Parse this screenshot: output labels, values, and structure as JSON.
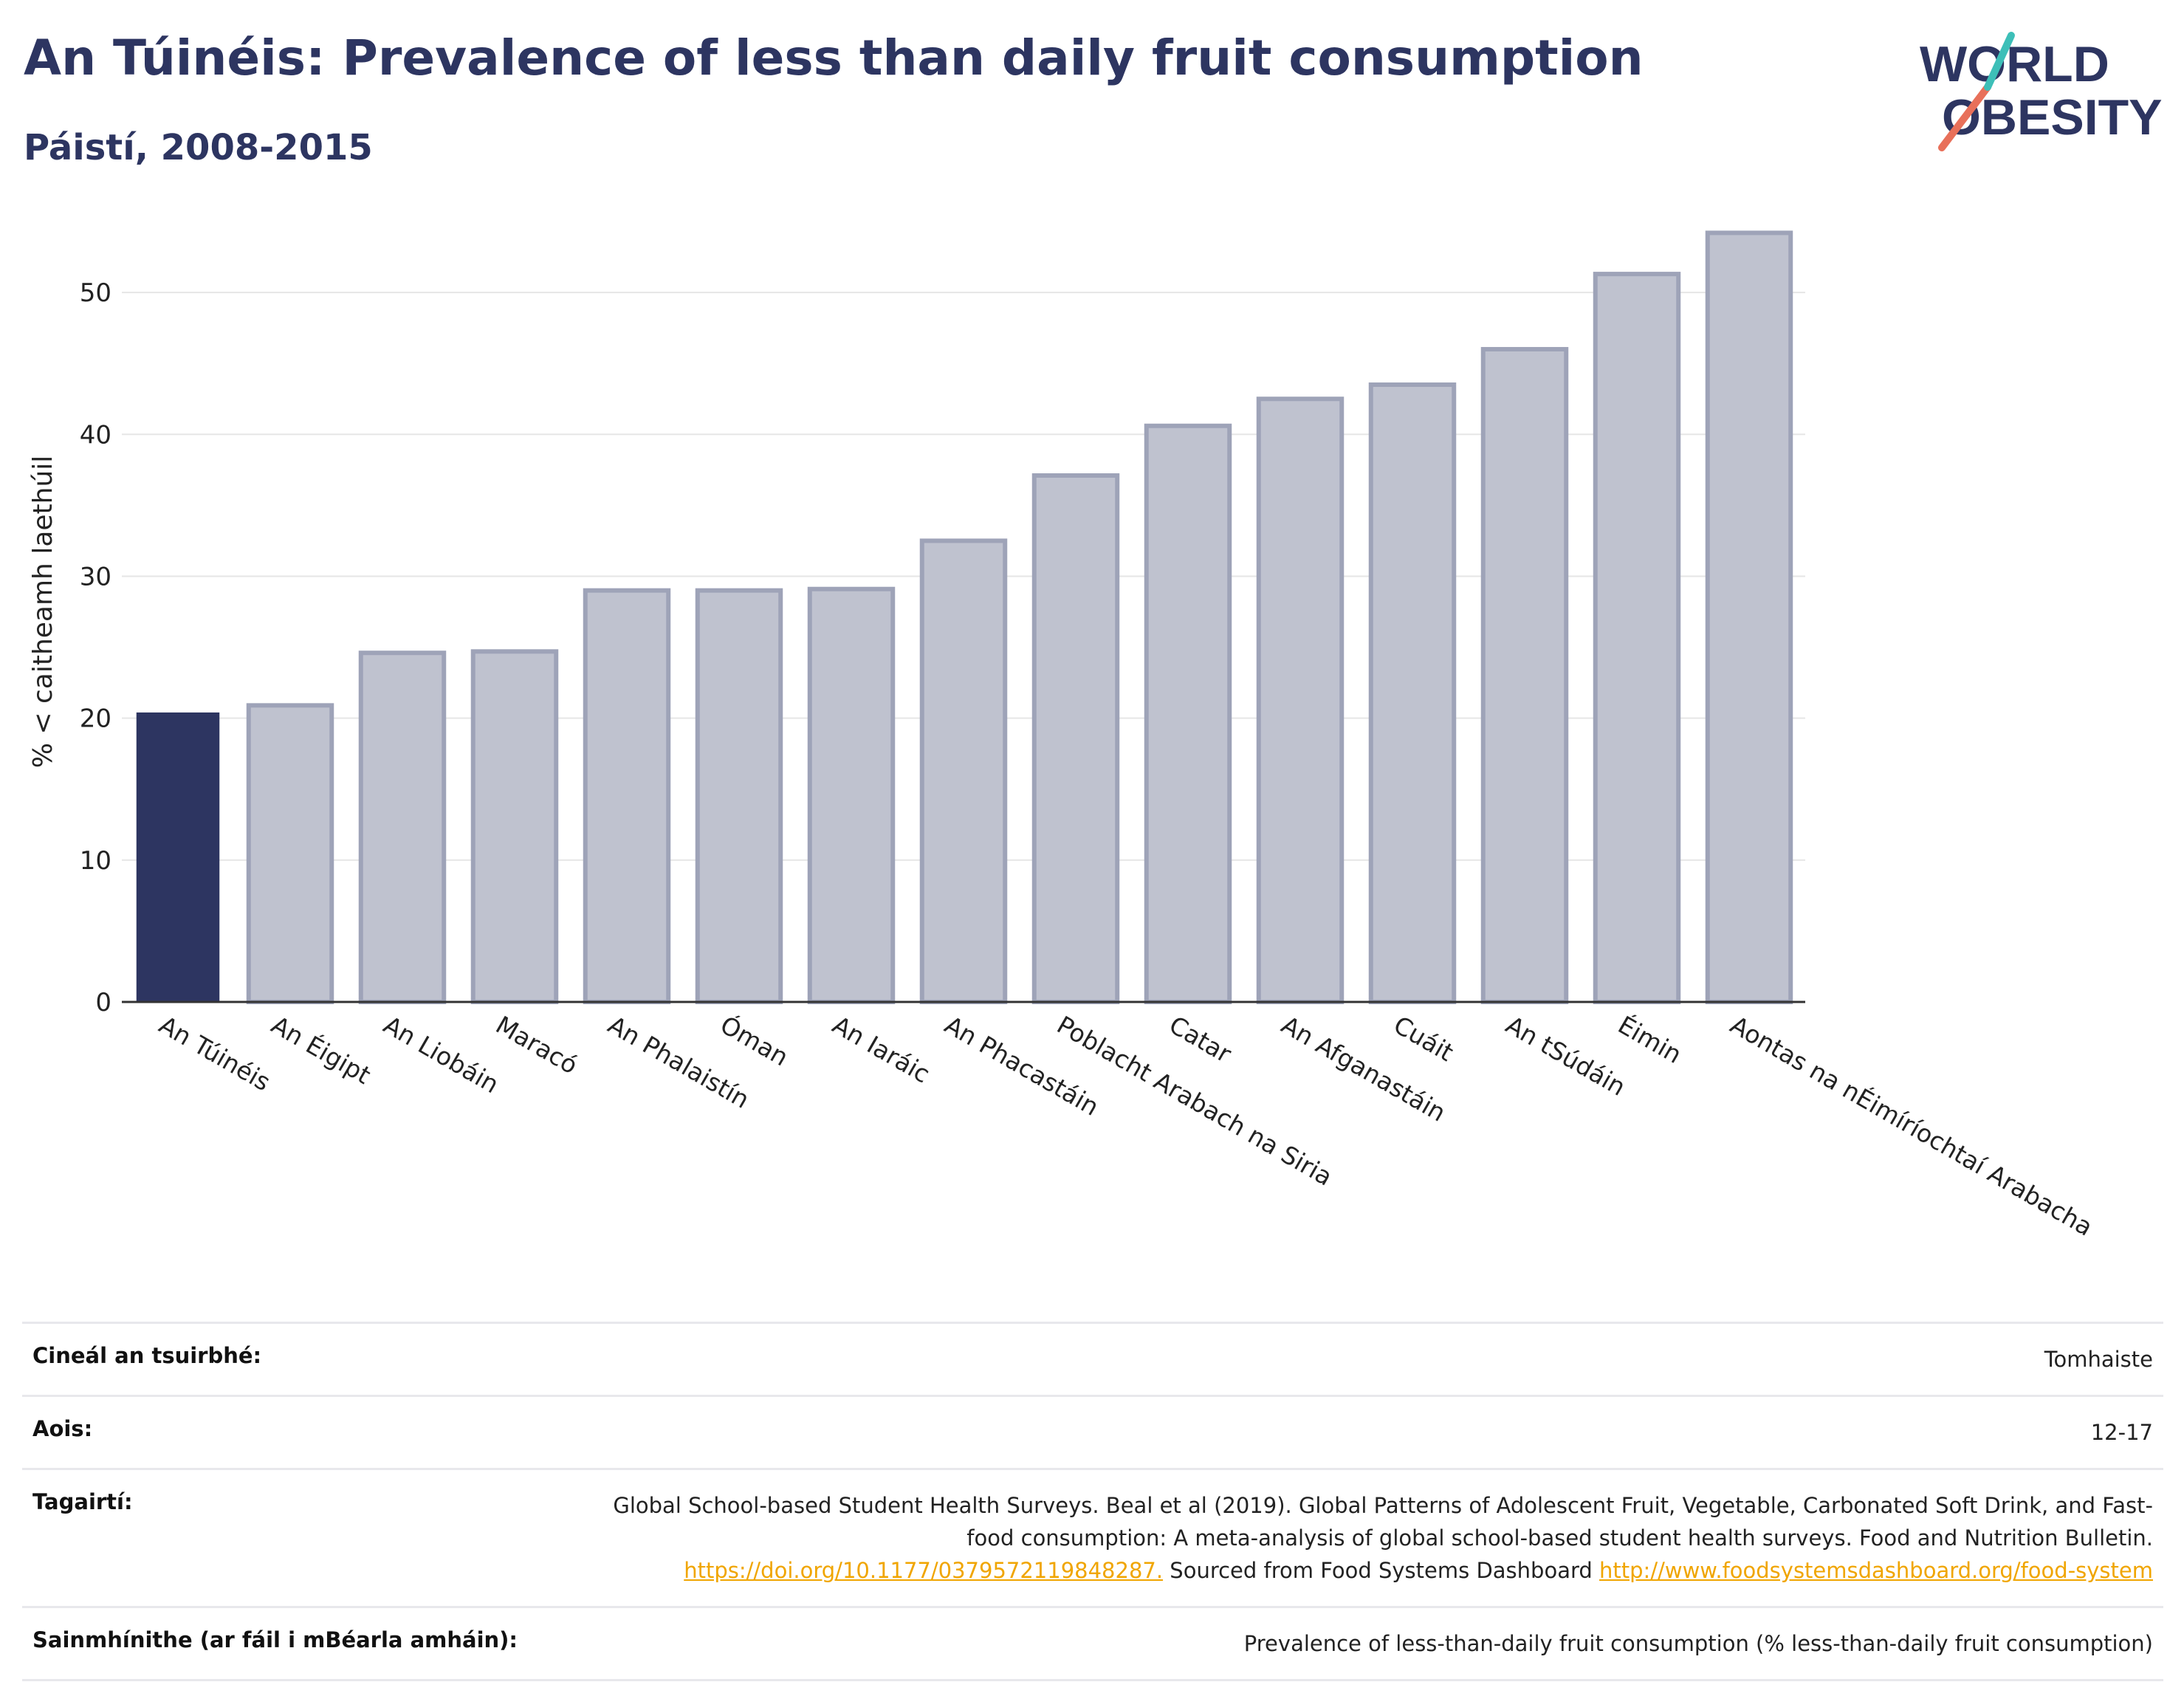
{
  "header": {
    "title": "An Túinéis: Prevalence of less than daily fruit consumption",
    "subtitle": "Páistí, 2008-2015",
    "logo_line1": "WORLD",
    "logo_line2": "OBESITY"
  },
  "chart_data": {
    "type": "bar",
    "ylabel": "% < caitheamh laethúil",
    "ylim": [
      0,
      55
    ],
    "yticks": [
      0,
      10,
      20,
      30,
      40,
      50
    ],
    "grid": true,
    "highlight_index": 0,
    "colors": {
      "highlight": "#2d3561",
      "bar_fill": "#bfc2cf",
      "bar_stroke": "#9ea3b8",
      "grid": "#e6e6e6",
      "axis": "#333333"
    },
    "categories": [
      "An Túinéis",
      "An Éigipt",
      "An Liobáin",
      "Maracó",
      "An Phalaistín",
      "Óman",
      "An Iaráic",
      "An Phacastáin",
      "Poblacht Arabach na Siria",
      "Catar",
      "An Afganastáin",
      "Cuáit",
      "An tSúdáin",
      "Éimin",
      "Aontas na nÉimíríochtaí Arabacha"
    ],
    "values": [
      20.4,
      20.9,
      24.6,
      24.7,
      29.0,
      29.0,
      29.1,
      32.5,
      37.1,
      40.6,
      42.5,
      43.5,
      46.0,
      51.3,
      54.2
    ]
  },
  "metadata": {
    "rows": [
      {
        "key": "Cineál an tsuirbhé:",
        "value": "Tomhaiste"
      },
      {
        "key": "Aois:",
        "value": "12-17"
      },
      {
        "key": "Tagairtí:",
        "value": "Global School-based Student Health Surveys. Beal et al (2019). Global Patterns of Adolescent Fruit, Vegetable, Carbonated Soft Drink, and Fast-food consumption: A meta-analysis of global school-based student health surveys. Food and Nutrition Bulletin.",
        "link1": "https://doi.org/10.1177/0379572119848287.",
        "mid": "Sourced from Food Systems Dashboard",
        "link2": "http://www.foodsystemsdashboard.org/food-system"
      },
      {
        "key": "Sainmhínithe (ar fáil i mBéarla amháin):",
        "value": "Prevalence of less-than-daily fruit consumption (% less-than-daily fruit consumption)"
      }
    ]
  }
}
